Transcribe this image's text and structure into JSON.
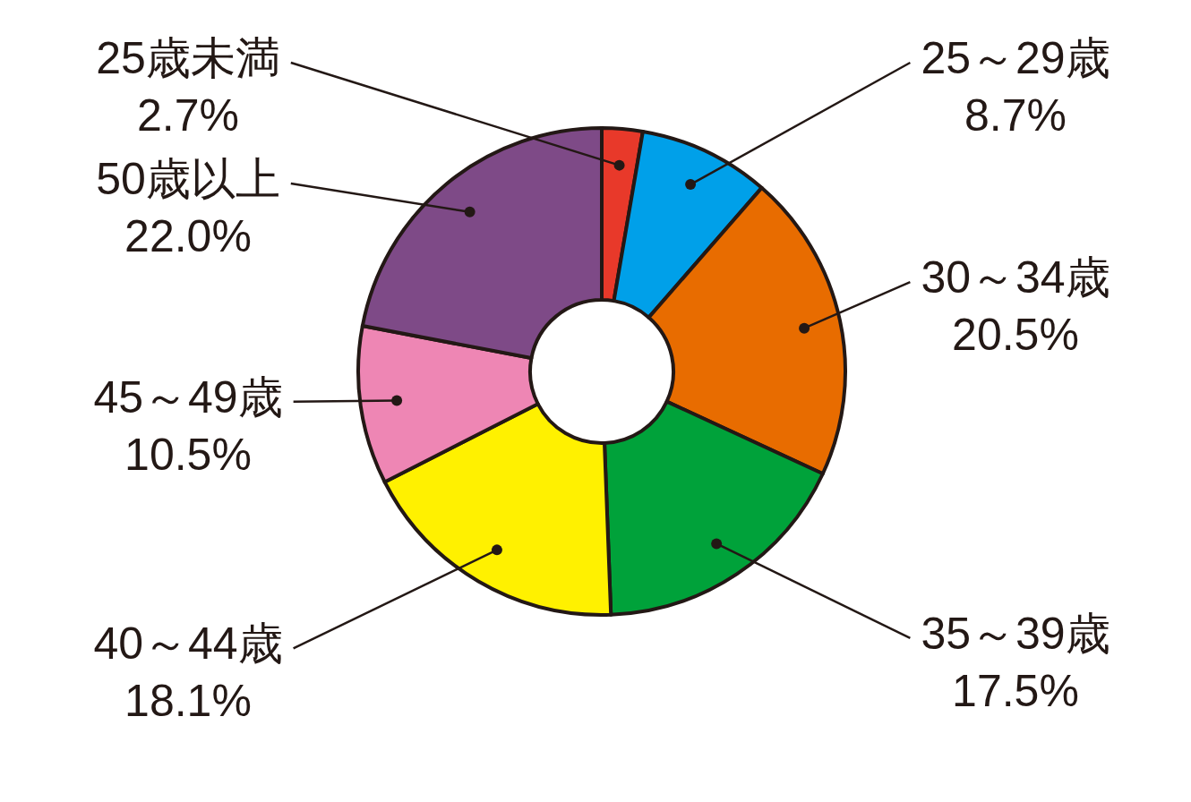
{
  "chart_data": {
    "type": "donut",
    "categories": [
      "25歳未満",
      "25～29歳",
      "30～34歳",
      "35～39歳",
      "40～44歳",
      "45～49歳",
      "50歳以上"
    ],
    "values": [
      2.7,
      8.7,
      20.5,
      17.5,
      18.1,
      10.5,
      22.0
    ],
    "value_labels": [
      "2.7%",
      "8.7%",
      "20.5%",
      "17.5%",
      "18.1%",
      "10.5%",
      "22.0%"
    ],
    "colors": [
      "#e8392a",
      "#00a0e9",
      "#e86c00",
      "#00a23a",
      "#fff100",
      "#ee86b4",
      "#7e4a87"
    ]
  }
}
